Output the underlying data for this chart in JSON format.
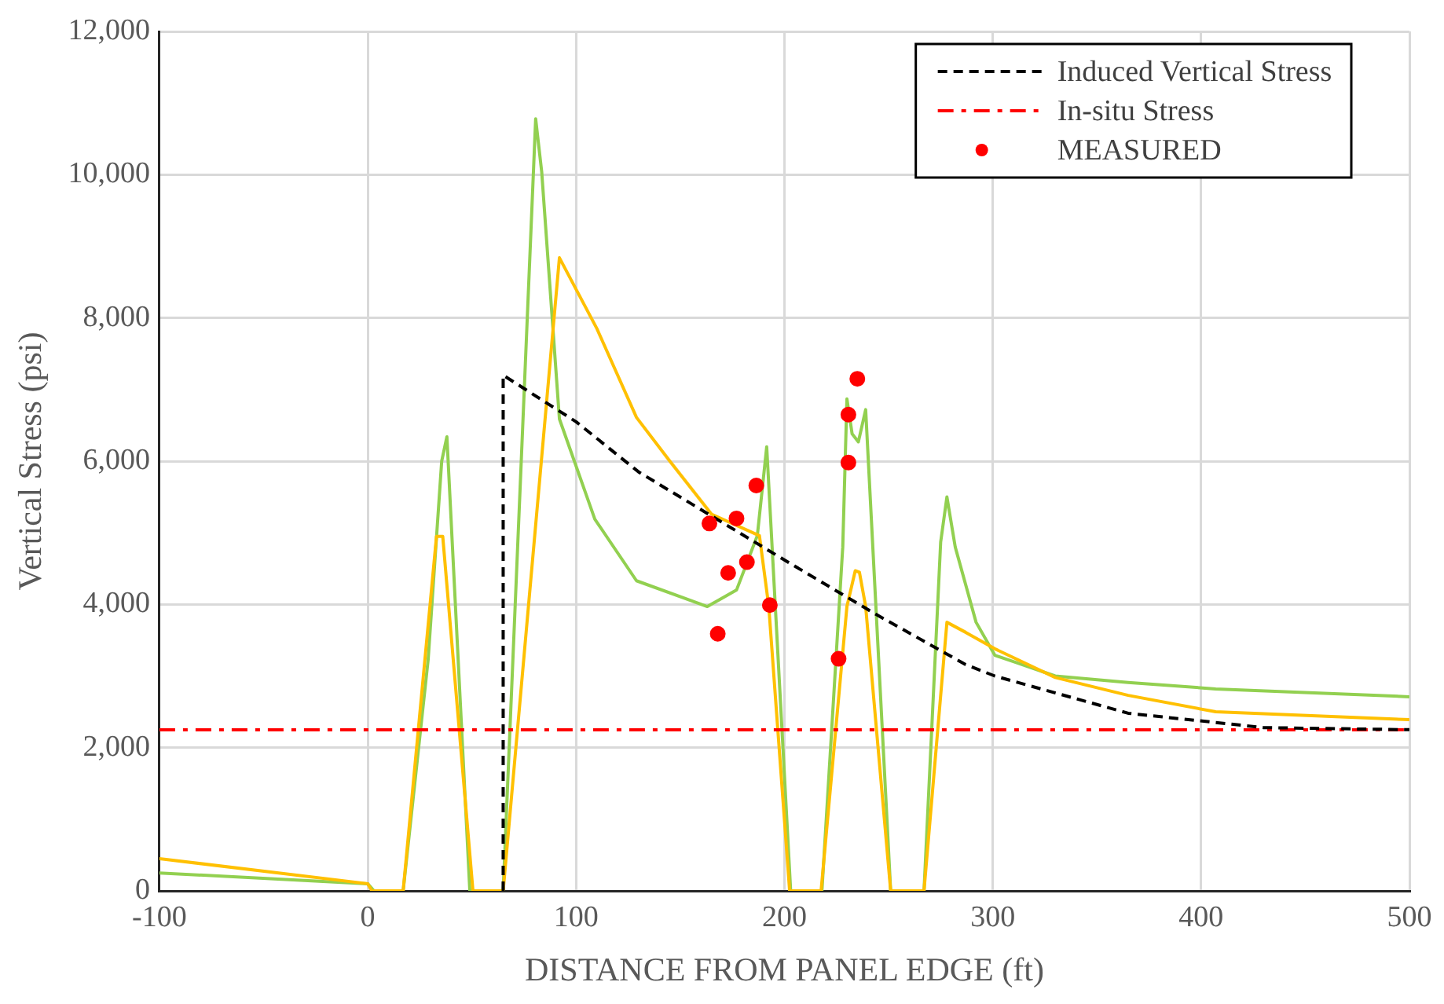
{
  "chart_data": {
    "type": "line",
    "xlabel": "DISTANCE FROM PANEL EDGE (ft)",
    "ylabel": "Vertical Stress (psi)",
    "xlim": [
      -100,
      500
    ],
    "xticks": [
      -100,
      0,
      100,
      200,
      300,
      400,
      500
    ],
    "ylim": [
      0,
      12000
    ],
    "yticks": [
      0,
      {
        "value": 2000,
        "label": "2,000"
      },
      {
        "value": 4000,
        "label": "4,000"
      },
      {
        "value": 6000,
        "label": "6,000"
      },
      {
        "value": 8000,
        "label": "8,000"
      },
      {
        "value": 10000,
        "label": "10,000"
      },
      {
        "value": 12000,
        "label": "12,000"
      }
    ],
    "grid": true,
    "legend": "top right",
    "series": [
      {
        "name": "Induced Vertical Stress",
        "line_style": "dashed",
        "color": "#000000",
        "x": [
          65,
          65,
          100,
          130,
          200,
          244,
          287,
          301,
          365,
          430,
          500
        ],
        "values": [
          0,
          7200,
          6550,
          5850,
          4620,
          3860,
          3160,
          3000,
          2480,
          2280,
          2250
        ]
      },
      {
        "name": "In-situ Stress",
        "line_style": "dashdot",
        "color": "#ff0000",
        "x": [
          -100,
          500
        ],
        "values": [
          2250,
          2250
        ]
      },
      {
        "line_style": "solid",
        "color": "#ffc000",
        "x": [
          -100,
          0,
          2,
          17,
          33,
          36,
          50.5,
          65,
          92,
          110,
          129,
          145,
          165,
          188,
          192.5,
          202.5,
          217.6,
          230,
          234,
          236,
          239,
          251,
          267,
          278,
          287,
          301,
          330,
          365,
          407,
          500
        ],
        "values": [
          450,
          100,
          0,
          0,
          4950,
          4950,
          0,
          0,
          8840,
          7850,
          6610,
          6000,
          5260,
          4960,
          3970,
          0,
          0,
          3970,
          4470,
          4450,
          3970,
          0,
          0,
          3750,
          3610,
          3380,
          2980,
          2730,
          2500,
          2390
        ]
      },
      {
        "line_style": "solid",
        "color": "#92d050",
        "x": [
          -100,
          0,
          3,
          17,
          29,
          35.5,
          38,
          49,
          65,
          80.6,
          83.5,
          92,
          109,
          129,
          163,
          177,
          187,
          191.5,
          203,
          218,
          228,
          230,
          232.5,
          235.5,
          239,
          251,
          267,
          275,
          278,
          282,
          292,
          301,
          311,
          330,
          365,
          407,
          500
        ],
        "values": [
          250,
          100,
          0,
          0,
          3230,
          6000,
          6340,
          0,
          0,
          10780,
          10040,
          6590,
          5190,
          4330,
          3970,
          4200,
          4960,
          6200,
          0,
          0,
          4800,
          6870,
          6380,
          6270,
          6720,
          0,
          0,
          4870,
          5500,
          4800,
          3750,
          3290,
          3190,
          3000,
          2910,
          2820,
          2710
        ]
      },
      {
        "name": "MEASURED",
        "type": "scatter",
        "marker": "circle",
        "color": "#ff0000",
        "x": [
          164,
          168,
          173,
          177,
          182,
          186.5,
          193,
          226,
          230.7,
          230.7,
          235
        ],
        "values": [
          5130,
          3590,
          4440,
          5200,
          4590,
          5660,
          3990,
          3240,
          6650,
          5980,
          7150
        ]
      }
    ]
  }
}
